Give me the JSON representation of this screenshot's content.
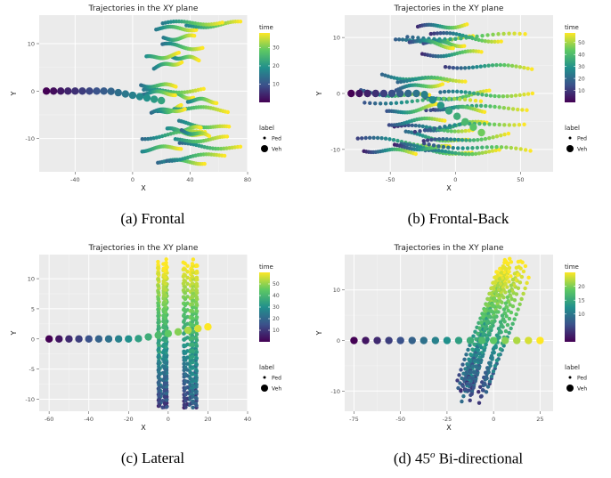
{
  "colors": {
    "panel_background": "#ebebeb",
    "grid_major": "#ffffff",
    "colormap": [
      "#440154",
      "#3b528b",
      "#21908c",
      "#5dc863",
      "#fde725"
    ]
  },
  "common": {
    "title": "Trajectories in the XY plane",
    "xlabel": "X",
    "ylabel": "Y",
    "legend_time_title": "time",
    "legend_label_title": "label",
    "legend_labels": [
      "Ped",
      "Veh"
    ]
  },
  "chart_data": [
    {
      "type": "scatter",
      "title": "Trajectories in the XY plane",
      "caption": "(a) Frontal",
      "xlabel": "X",
      "ylabel": "Y",
      "xlim": [
        -65,
        80
      ],
      "ylim": [
        -17,
        16
      ],
      "xticks": [
        -40,
        0,
        40,
        80
      ],
      "yticks": [
        -10,
        0,
        10
      ],
      "time_range": [
        0,
        38
      ],
      "colorbar_ticks": [
        10,
        20,
        30
      ],
      "vehicle": {
        "x": [
          -60,
          20
        ],
        "y": [
          0,
          -2
        ],
        "time": [
          0,
          22
        ]
      },
      "pedestrians": {
        "pattern": "horizontal",
        "x_range": [
          5,
          75
        ],
        "y_range": [
          -15,
          14.5
        ],
        "time_range": [
          12,
          38
        ],
        "count": 26
      },
      "legend": [
        "Ped",
        "Veh"
      ]
    },
    {
      "type": "scatter",
      "title": "Trajectories in the XY plane",
      "caption": "(b) Frontal-Back",
      "xlabel": "X",
      "ylabel": "Y",
      "xlim": [
        -85,
        75
      ],
      "ylim": [
        -14,
        14
      ],
      "xticks": [
        -50,
        0,
        50
      ],
      "yticks": [
        -10,
        0,
        10
      ],
      "time_range": [
        0,
        58
      ],
      "colorbar_ticks": [
        10,
        20,
        30,
        40,
        50
      ],
      "vehicle": {
        "x": [
          -80,
          20
        ],
        "y": [
          0,
          -7
        ],
        "time": [
          0,
          45
        ]
      },
      "pedestrians": {
        "pattern": "horizontal",
        "x_range": [
          -75,
          65
        ],
        "y_range": [
          -12,
          12
        ],
        "time_range": [
          5,
          58
        ],
        "count": 30
      },
      "legend": [
        "Ped",
        "Veh"
      ]
    },
    {
      "type": "scatter",
      "title": "Trajectories in the XY plane",
      "caption": "(c) Lateral",
      "xlabel": "X",
      "ylabel": "Y",
      "xlim": [
        -65,
        40
      ],
      "ylim": [
        -12,
        14
      ],
      "xticks": [
        -60,
        -40,
        -20,
        0,
        20,
        40
      ],
      "yticks": [
        -10,
        -5,
        0,
        5,
        10
      ],
      "time_range": [
        0,
        60
      ],
      "colorbar_ticks": [
        10,
        20,
        30,
        40,
        50
      ],
      "vehicle": {
        "x": [
          -60,
          20
        ],
        "y": [
          0,
          2
        ],
        "time": [
          0,
          60
        ]
      },
      "pedestrians": {
        "pattern": "vertical",
        "x_range": [
          -5,
          15
        ],
        "y_range": [
          -11,
          13
        ],
        "time_range": [
          5,
          60
        ],
        "count": 28
      },
      "legend": [
        "Ped",
        "Veh"
      ]
    },
    {
      "type": "scatter",
      "title": "Trajectories in the XY plane",
      "caption_prefix": "(d)",
      "caption_angle": "45",
      "caption_degree_symbol": "o",
      "caption_suffix": "Bi-directional",
      "xlabel": "X",
      "ylabel": "Y",
      "xlim": [
        -80,
        32
      ],
      "ylim": [
        -14,
        17
      ],
      "xticks": [
        -75,
        -50,
        -25,
        0,
        25
      ],
      "yticks": [
        -10,
        0,
        10
      ],
      "time_range": [
        0,
        25
      ],
      "colorbar_ticks": [
        10,
        15,
        20
      ],
      "vehicle": {
        "x": [
          -75,
          25
        ],
        "y": [
          0,
          0
        ],
        "time": [
          0,
          25
        ]
      },
      "pedestrians": {
        "pattern": "diagonal",
        "x_range": [
          -15,
          15
        ],
        "y_range": [
          -12,
          16
        ],
        "time_range": [
          3,
          25
        ],
        "count": 22
      },
      "legend": [
        "Ped",
        "Veh"
      ]
    }
  ]
}
